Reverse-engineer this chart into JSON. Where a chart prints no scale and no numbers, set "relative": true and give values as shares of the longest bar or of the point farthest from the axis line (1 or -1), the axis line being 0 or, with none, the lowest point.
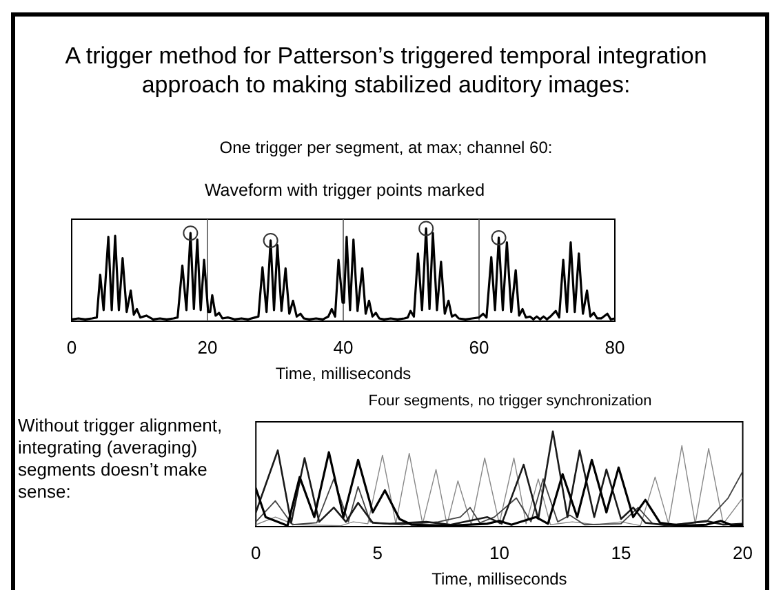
{
  "chart_data": [
    {
      "type": "line",
      "title": "A trigger method for Patterson’s triggered temporal integration approach to making stabilized auditory images:",
      "subtitle": "One trigger per segment, at max; channel 60:",
      "annotations": [
        "Waveform with trigger points marked"
      ],
      "xlabel": "Time, milliseconds",
      "relative": true,
      "xlim": [
        0,
        80
      ],
      "xticks": [
        0,
        20,
        40,
        60,
        80
      ],
      "grid": false,
      "marker": "none",
      "ref_lines": [
        {
          "axis": "x",
          "value": 20,
          "color": "#555555"
        },
        {
          "axis": "x",
          "value": 40,
          "color": "#555555"
        },
        {
          "axis": "x",
          "value": 60,
          "color": "#555555"
        }
      ],
      "series": [
        {
          "type": "line",
          "color": "#000000",
          "x": [
            0,
            1,
            2,
            3,
            3.7,
            4.2,
            4.7,
            5.4,
            5.9,
            6.4,
            6.95,
            7.5,
            8.1,
            8.7,
            9.15,
            9.6,
            10.1,
            11,
            12,
            13,
            14,
            15,
            15.6,
            16.3,
            16.9,
            17.5,
            18.0,
            18.5,
            19.0,
            19.5,
            20.1,
            20.4,
            20.7,
            21.2,
            21.7,
            22.2,
            23,
            24,
            25,
            26,
            27,
            27.5,
            28.1,
            28.7,
            29.3,
            29.8,
            30.3,
            30.9,
            31.5,
            32.05,
            32.6,
            33.15,
            33.7,
            34.2,
            35,
            36,
            37,
            37.8,
            38.3,
            38.8,
            39.3,
            39.9,
            40.1,
            40.5,
            41.0,
            41.5,
            42.1,
            42.8,
            43.3,
            43.8,
            44.3,
            44.8,
            45.3,
            46,
            47,
            48,
            49,
            49.5,
            49.9,
            50.4,
            51.0,
            51.6,
            52.2,
            52.7,
            53.2,
            53.8,
            54.4,
            54.95,
            55.5,
            56,
            56.5,
            57,
            58,
            59,
            60,
            60.6,
            61.1,
            61.8,
            62.35,
            62.9,
            63.5,
            64.1,
            64.75,
            65.4,
            65.9,
            66.4,
            66.9,
            67.5,
            68,
            68.5,
            69,
            69.5,
            70,
            70.5,
            71.3,
            71.8,
            72.4,
            72.95,
            73.5,
            74.1,
            74.7,
            75.3,
            75.9,
            76.4,
            76.9,
            77.4,
            78,
            78.9,
            79.4,
            80
          ],
          "values": [
            0.02,
            0.03,
            0.02,
            0.03,
            0.04,
            0.5,
            0.12,
            0.91,
            0.12,
            0.92,
            0.12,
            0.68,
            0.1,
            0.33,
            0.07,
            0.13,
            0.04,
            0.06,
            0.02,
            0.03,
            0.02,
            0.03,
            0.04,
            0.6,
            0.12,
            0.95,
            0.13,
            0.88,
            0.12,
            0.66,
            0.1,
            0.1,
            0.28,
            0.06,
            0.09,
            0.03,
            0.04,
            0.02,
            0.03,
            0.02,
            0.04,
            0.05,
            0.58,
            0.1,
            0.87,
            0.12,
            0.82,
            0.11,
            0.57,
            0.08,
            0.22,
            0.05,
            0.08,
            0.03,
            0.02,
            0.03,
            0.02,
            0.05,
            0.13,
            0.05,
            0.66,
            0.2,
            0.2,
            0.91,
            0.12,
            0.88,
            0.11,
            0.57,
            0.08,
            0.22,
            0.05,
            0.09,
            0.03,
            0.02,
            0.03,
            0.02,
            0.03,
            0.04,
            0.11,
            0.05,
            0.73,
            0.12,
            1.0,
            0.13,
            0.95,
            0.12,
            0.64,
            0.08,
            0.22,
            0.05,
            0.07,
            0.03,
            0.02,
            0.03,
            0.04,
            0.08,
            0.04,
            0.69,
            0.12,
            0.9,
            0.12,
            0.85,
            0.1,
            0.55,
            0.06,
            0.13,
            0.04,
            0.05,
            0.02,
            0.05,
            0.02,
            0.05,
            0.02,
            0.05,
            0.11,
            0.04,
            0.66,
            0.1,
            0.85,
            0.1,
            0.73,
            0.08,
            0.33,
            0.05,
            0.09,
            0.03,
            0.03,
            0.08,
            0.02,
            0.03
          ]
        },
        {
          "type": "scatter",
          "color": "#333333",
          "marker": "circle",
          "x": [
            17.5,
            29.3,
            52.2,
            62.9
          ],
          "values": [
            0.95,
            0.87,
            1.0,
            0.9
          ]
        }
      ]
    },
    {
      "type": "line",
      "title": "Four segments, no trigger synchronization",
      "annotations": [
        "Without trigger alignment, integrating (averaging) segments doesn’t make sense:"
      ],
      "xlabel": "Time, milliseconds",
      "relative": true,
      "xlim": [
        0,
        20
      ],
      "xticks": [
        0,
        5,
        10,
        15,
        20
      ],
      "grid": false,
      "marker": "none",
      "series": [
        {
          "color": "#000000",
          "x": [
            0,
            0.4,
            0.8,
            1.3,
            1.8,
            2.4,
            3.0,
            3.6,
            4.2,
            4.8,
            5.3,
            5.9,
            6.4,
            8,
            9.5,
            10,
            10.5,
            11.5,
            12.0,
            12.6,
            13.2,
            13.8,
            14.4,
            14.9,
            15.5,
            16.0,
            16.6,
            17.5,
            18.5,
            19.1,
            19.6,
            20
          ],
          "values": [
            0.4,
            0.1,
            0.06,
            0.01,
            0.52,
            0.1,
            0.78,
            0.1,
            0.7,
            0.15,
            0.38,
            0.08,
            0.02,
            0.01,
            0.03,
            0.06,
            0.02,
            0.1,
            0.03,
            0.55,
            0.1,
            0.7,
            0.15,
            0.62,
            0.1,
            0.28,
            0.04,
            0.01,
            0.02,
            0.06,
            0.01,
            0.02
          ]
        },
        {
          "color": "#1a1a1a",
          "x": [
            0,
            0.9,
            1.45,
            2.0,
            2.6,
            3.2,
            3.7,
            4.2,
            4.8,
            5.5,
            7,
            8,
            9.5,
            10.1,
            11,
            11.6,
            12.2,
            12.8,
            13.3,
            13.9,
            14.4,
            15,
            15.5,
            16,
            17,
            18.5,
            19.2,
            20
          ],
          "values": [
            0.15,
            0.8,
            0.04,
            0.72,
            0.05,
            0.2,
            0.05,
            0.25,
            0.04,
            0.03,
            0.05,
            0.02,
            0.1,
            0.03,
            0.65,
            0.08,
            1.0,
            0.1,
            0.8,
            0.1,
            0.6,
            0.08,
            0.2,
            0.04,
            0.01,
            0.06,
            0.02,
            0.03
          ]
        },
        {
          "color": "#444444",
          "x": [
            0,
            0.8,
            1.5,
            2.5,
            3.2,
            3.8,
            4.2,
            4.7,
            5.3,
            6,
            7.5,
            8.4,
            8.8,
            9.2,
            9.8,
            10.7,
            11.3,
            11.8,
            12.4,
            12.9,
            13.5,
            15,
            15.7,
            16.3,
            17,
            18.5,
            19.4,
            20
          ],
          "values": [
            0.05,
            0.27,
            0.02,
            0.04,
            0.5,
            0.05,
            0.42,
            0.05,
            0.03,
            0.02,
            0.05,
            0.1,
            0.2,
            0.04,
            0.1,
            0.3,
            0.05,
            0.5,
            0.05,
            0.12,
            0.02,
            0.03,
            0.2,
            0.03,
            0.02,
            0.05,
            0.3,
            0.58
          ]
        },
        {
          "color": "#888888",
          "x": [
            0,
            0.8,
            1.6,
            3.5,
            4,
            4.6,
            5.2,
            5.75,
            6.3,
            6.85,
            7.4,
            7.85,
            8.3,
            8.85,
            9.4,
            10,
            10.6,
            11.1,
            11.6,
            12.1,
            13,
            14,
            15,
            15.8,
            16.4,
            16.95,
            17.5,
            18.05,
            18.6,
            19.2,
            20
          ],
          "values": [
            0.02,
            0.1,
            0.02,
            0.01,
            0.05,
            0.03,
            0.75,
            0.03,
            0.77,
            0.03,
            0.6,
            0.02,
            0.48,
            0.02,
            0.72,
            0.03,
            0.72,
            0.03,
            0.5,
            0.02,
            0.05,
            0.02,
            0.05,
            0.01,
            0.52,
            0.03,
            0.85,
            0.03,
            0.82,
            0.03,
            0.3
          ]
        }
      ]
    }
  ]
}
